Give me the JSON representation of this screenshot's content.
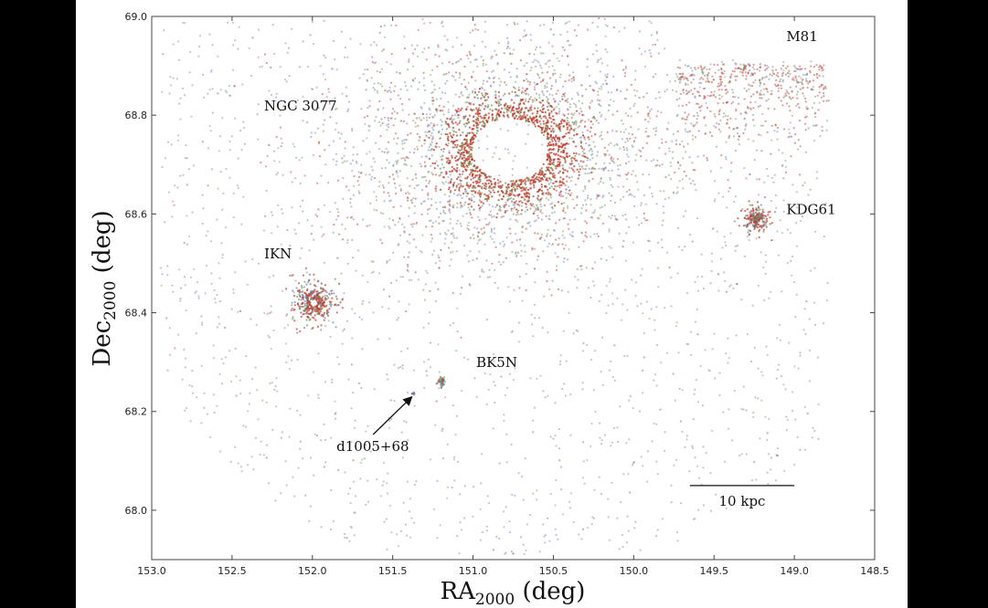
{
  "chart_data": {
    "type": "scatter",
    "xlabel": "RA",
    "xlabel_sub": "2000",
    "xlabel_unit": " (deg)",
    "ylabel": "Dec",
    "ylabel_sub": "2000",
    "ylabel_unit": " (deg)",
    "xlim": [
      153.0,
      148.5
    ],
    "ylim": [
      67.9,
      69.0
    ],
    "x_inverted": true,
    "grid": false,
    "xticks": [
      "153.0",
      "152.5",
      "152.0",
      "151.5",
      "151.0",
      "150.5",
      "150.0",
      "149.5",
      "149.0",
      "148.5"
    ],
    "yticks": [
      "68.0",
      "68.2",
      "68.4",
      "68.6",
      "68.8",
      "69.0"
    ],
    "point_colors": [
      "#c0392b",
      "#6f9a5c",
      "#6b7fb5"
    ],
    "objects": [
      {
        "label": "NGC 3077",
        "ra": 150.77,
        "dec": 68.73,
        "label_ra": 152.3,
        "label_dec": 68.81
      },
      {
        "label": "M81",
        "ra": 149.0,
        "dec": 69.05,
        "label_ra": 149.05,
        "label_dec": 68.95
      },
      {
        "label": "KDG61",
        "ra": 149.23,
        "dec": 68.59,
        "label_ra": 149.05,
        "label_dec": 68.6
      },
      {
        "label": "IKN",
        "ra": 151.99,
        "dec": 68.42,
        "label_ra": 152.3,
        "label_dec": 68.51
      },
      {
        "label": "BK5N",
        "ra": 151.19,
        "dec": 68.26,
        "label_ra": 150.98,
        "label_dec": 68.29
      },
      {
        "label": "d1005+68",
        "ra": 151.37,
        "dec": 68.235,
        "label_ra": 151.85,
        "label_dec": 68.12
      }
    ],
    "scale_bar": {
      "label": "10 kpc",
      "ra_start": 149.65,
      "ra_end": 149.0,
      "dec": 68.05
    }
  }
}
